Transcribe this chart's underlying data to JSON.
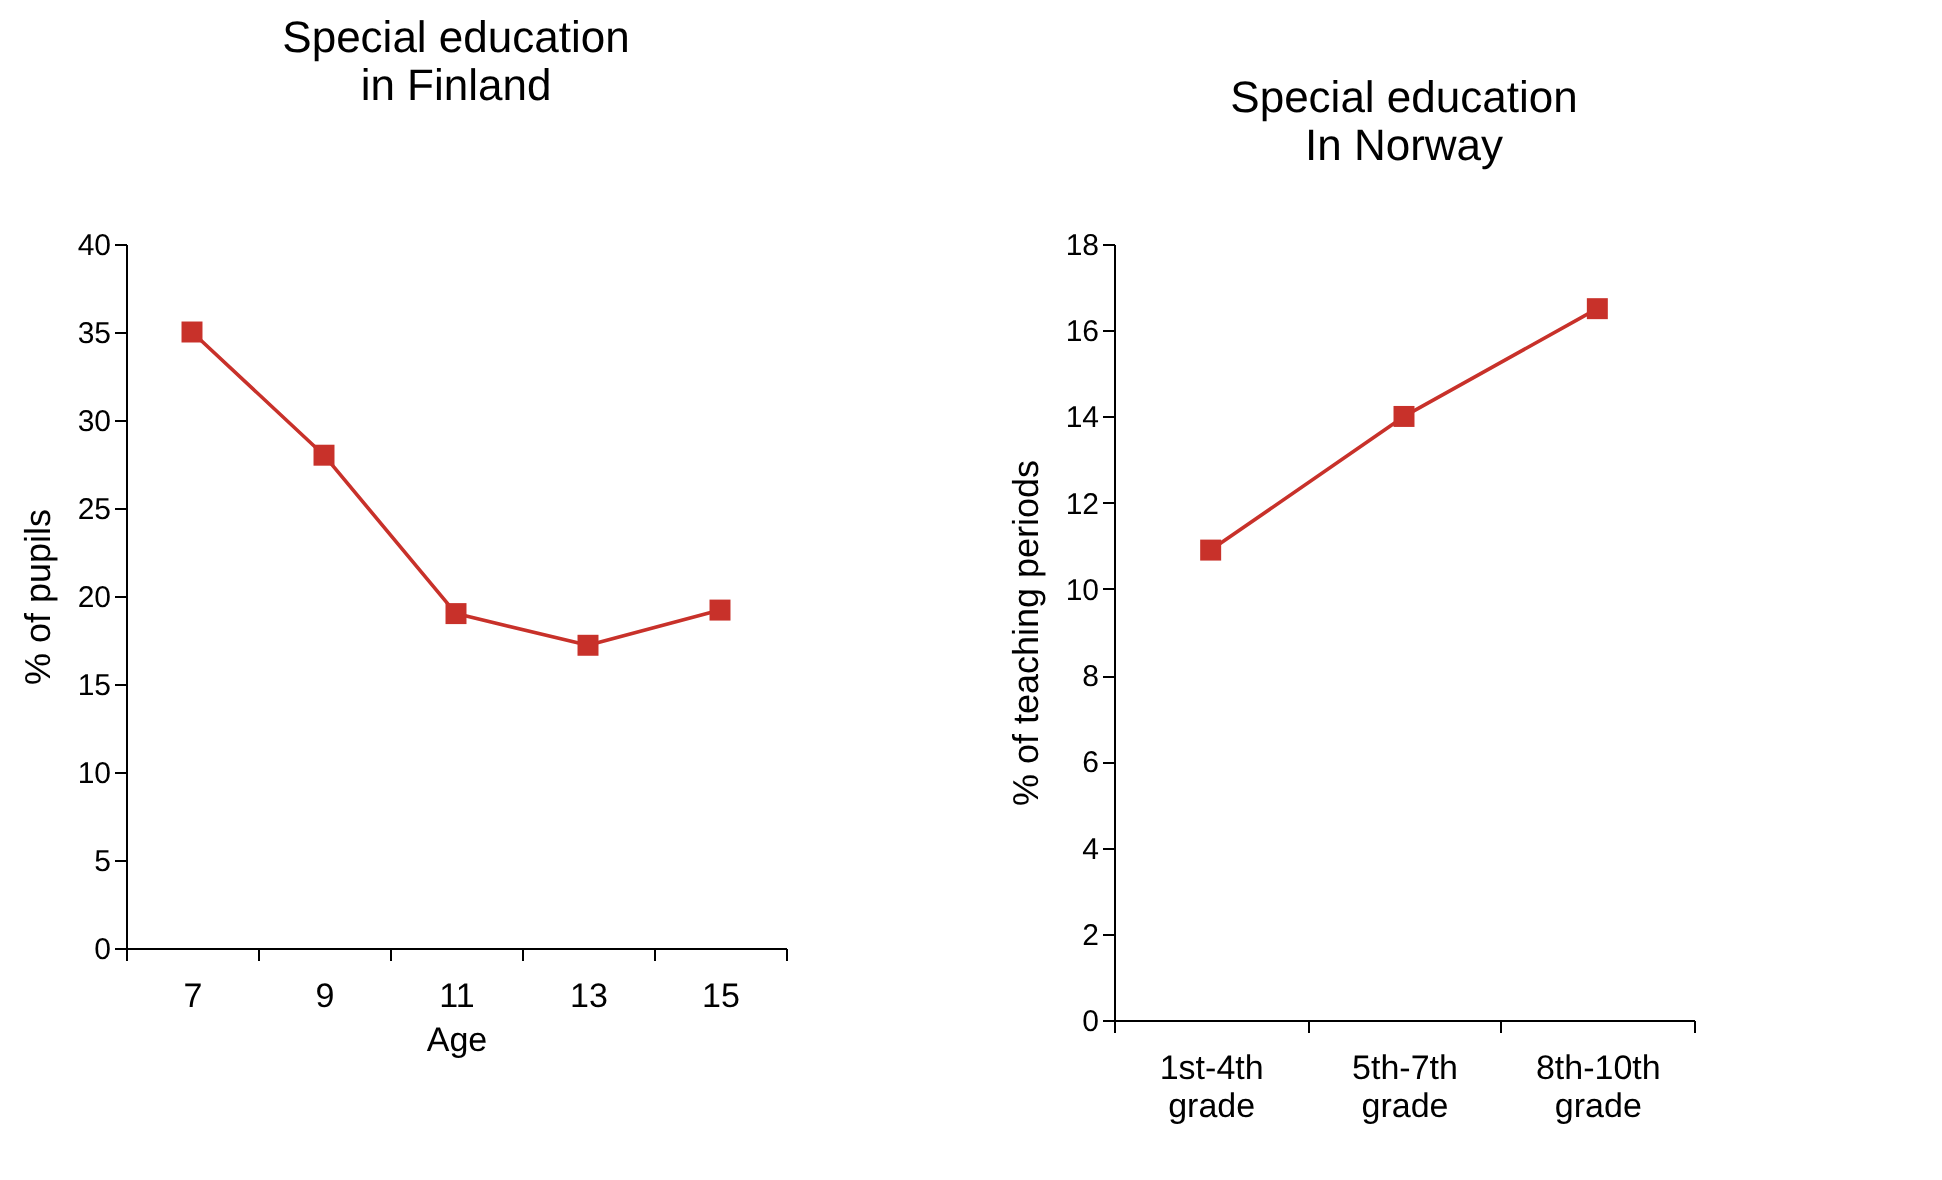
{
  "chart_data": [
    {
      "type": "line",
      "title": "Special education\nin Finland",
      "xlabel": "Age",
      "ylabel": "% of pupils",
      "categories": [
        "7",
        "9",
        "11",
        "13",
        "15"
      ],
      "series": [
        {
          "color": "#c8312a",
          "values": [
            35,
            28,
            19,
            17.2,
            19.2
          ]
        }
      ],
      "ylim": [
        0,
        40
      ],
      "yticks": [
        0,
        5,
        10,
        15,
        20,
        25,
        30,
        35,
        40
      ],
      "grid": false,
      "legend": false,
      "marker": "square",
      "line_style": "solid"
    },
    {
      "type": "line",
      "title": "Special education\nIn Norway",
      "ylabel": "% of teaching periods",
      "categories": [
        "1st-4th\ngrade",
        "5th-7th\ngrade",
        "8th-10th\ngrade"
      ],
      "series": [
        {
          "color": "#c8312a",
          "values": [
            10.9,
            14,
            16.5
          ]
        }
      ],
      "ylim": [
        0,
        18
      ],
      "yticks": [
        0,
        2,
        4,
        6,
        8,
        10,
        12,
        14,
        16,
        18
      ],
      "grid": false,
      "legend": false,
      "marker": "square",
      "line_style": "solid"
    }
  ]
}
